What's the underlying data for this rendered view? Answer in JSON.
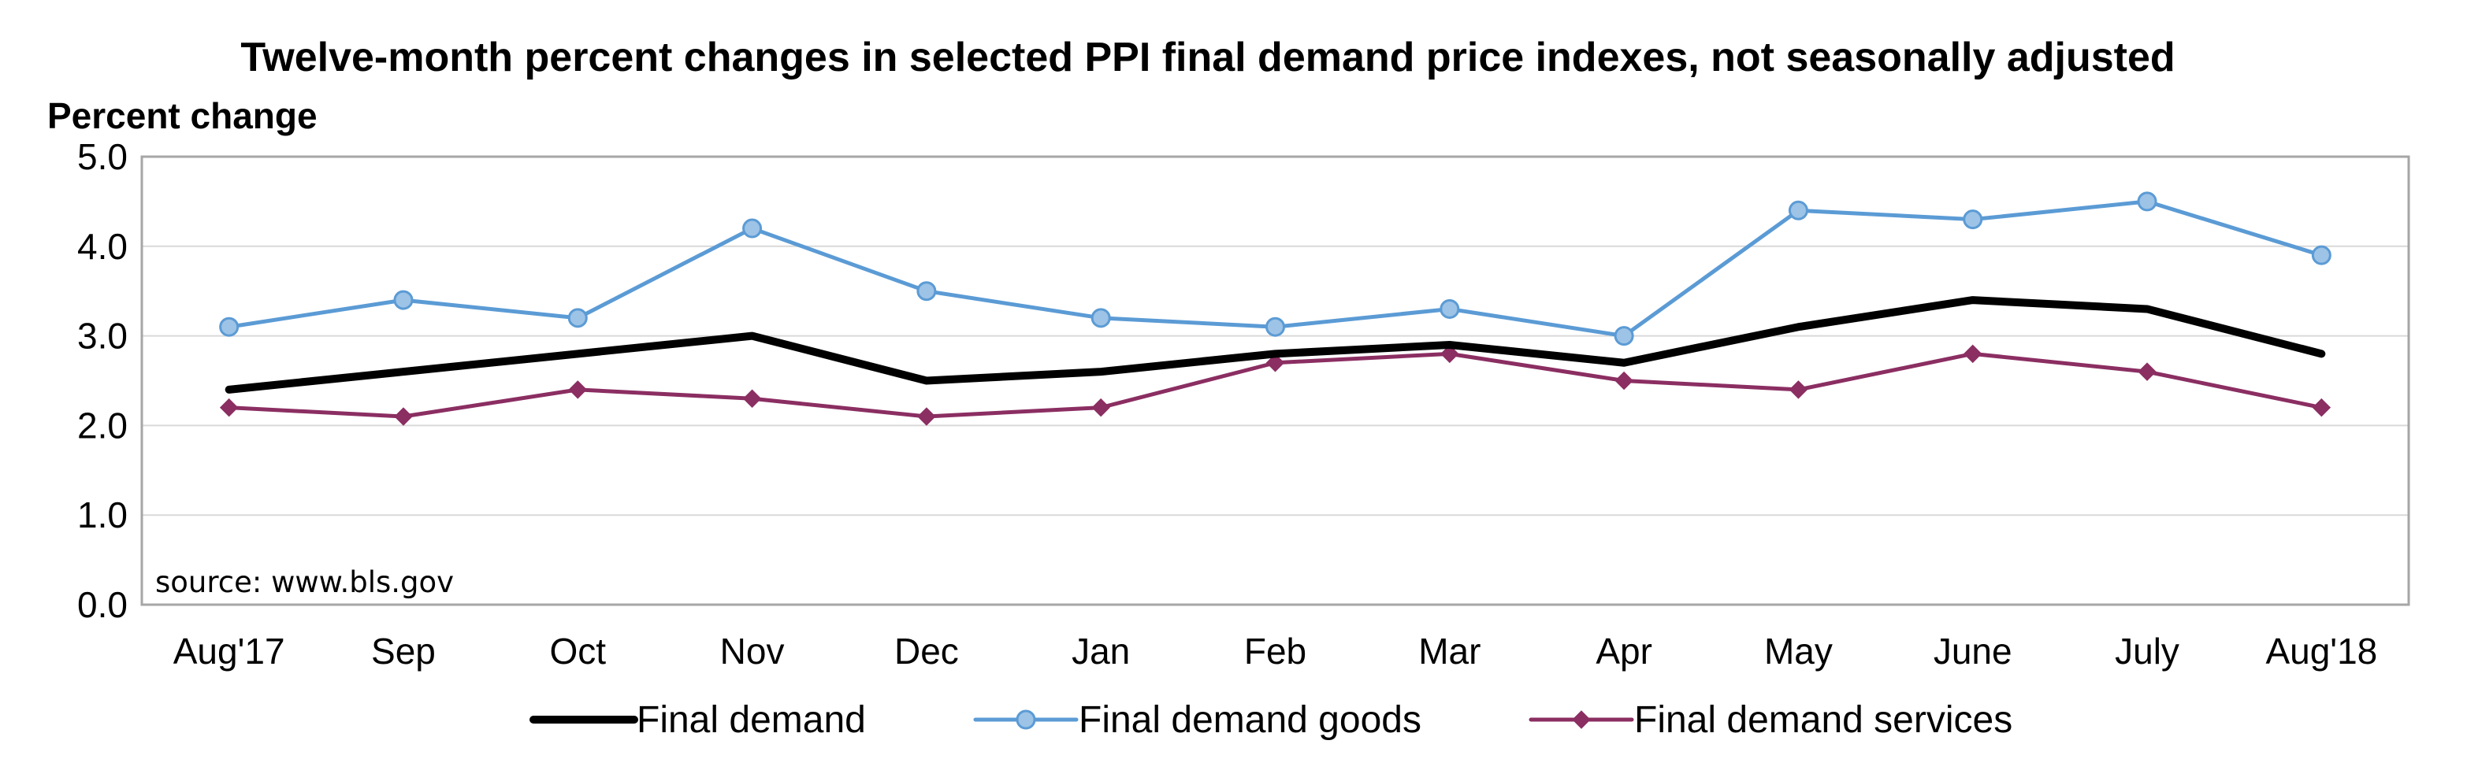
{
  "chart_data": {
    "type": "line",
    "title": "Twelve-month percent changes in selected PPI final demand price indexes, not seasonally adjusted",
    "ylabel": "Percent change",
    "xlabel": "",
    "ylim": [
      0,
      5
    ],
    "yticks": [
      "0.0",
      "1.0",
      "2.0",
      "3.0",
      "4.0",
      "5.0"
    ],
    "categories": [
      "Aug'17",
      "Sep",
      "Oct",
      "Nov",
      "Dec",
      "Jan",
      "Feb",
      "Mar",
      "Apr",
      "May",
      "June",
      "July",
      "Aug'18"
    ],
    "grid": true,
    "legend_position": "bottom",
    "annotation": "source: www.bls.gov",
    "series": [
      {
        "name": "Final demand",
        "color": "#000000",
        "marker": "none",
        "values": [
          2.4,
          2.6,
          2.8,
          3.0,
          2.5,
          2.6,
          2.8,
          2.9,
          2.7,
          3.1,
          3.4,
          3.3,
          2.8
        ]
      },
      {
        "name": "Final demand goods",
        "color": "#5b9bd5",
        "marker": "circle",
        "marker_fill": "#9dc3e6",
        "values": [
          3.1,
          3.4,
          3.2,
          4.2,
          3.5,
          3.2,
          3.1,
          3.3,
          3.0,
          4.4,
          4.3,
          4.5,
          3.9
        ]
      },
      {
        "name": "Final demand services",
        "color": "#8b2e62",
        "marker": "diamond",
        "values": [
          2.2,
          2.1,
          2.4,
          2.3,
          2.1,
          2.2,
          2.7,
          2.8,
          2.5,
          2.4,
          2.8,
          2.6,
          2.2
        ]
      }
    ]
  }
}
